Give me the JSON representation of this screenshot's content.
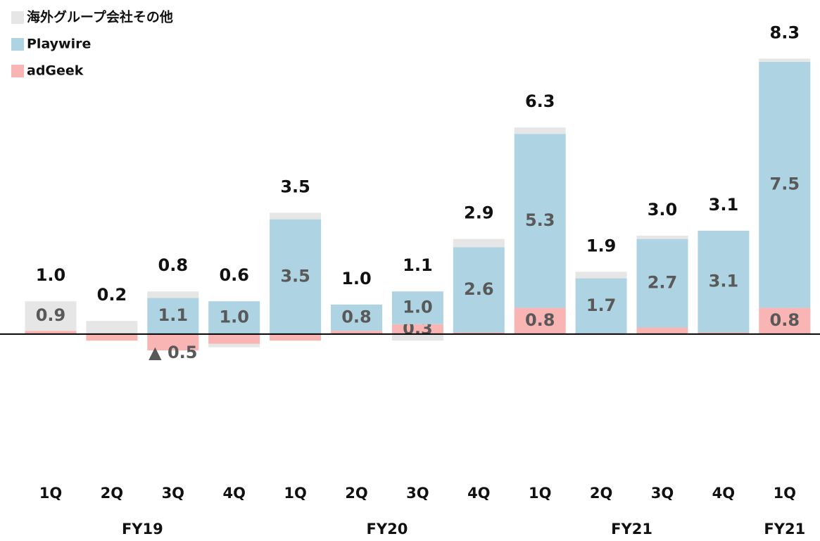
{
  "chart_data": {
    "type": "stacked_bar",
    "groups": [
      {
        "label": "FY19",
        "categories": [
          "1Q",
          "2Q",
          "3Q",
          "4Q"
        ]
      },
      {
        "label": "FY20",
        "categories": [
          "1Q",
          "2Q",
          "3Q",
          "4Q"
        ]
      },
      {
        "label": "FY21",
        "categories": [
          "1Q",
          "2Q",
          "3Q",
          "4Q"
        ]
      },
      {
        "label": "FY21",
        "categories": [
          "1Q"
        ]
      }
    ],
    "series": [
      {
        "name": "adGeek",
        "color": "#f9b4b4",
        "values": [
          0.1,
          -0.2,
          -0.5,
          -0.3,
          -0.2,
          0.1,
          0.3,
          0.05,
          0.8,
          0.0,
          0.2,
          0.05,
          0.8
        ],
        "value_labels": [
          null,
          null,
          "▲ 0.5",
          null,
          null,
          null,
          "0.3",
          null,
          "0.8",
          null,
          null,
          null,
          "0.8"
        ]
      },
      {
        "name": "Playwire",
        "color": "#aed4e3",
        "values": [
          0,
          0,
          1.1,
          1.0,
          3.5,
          0.8,
          1.0,
          2.6,
          5.3,
          1.7,
          2.7,
          3.1,
          7.5
        ],
        "value_labels": [
          null,
          null,
          "1.1",
          "1.0",
          "3.5",
          "0.8",
          "1.0",
          "2.6",
          "5.3",
          "1.7",
          "2.7",
          "3.1",
          "7.5"
        ]
      },
      {
        "name": "海外グループ会社その他",
        "color": "#e6e6e6",
        "values": [
          0.9,
          0.4,
          0.2,
          -0.1,
          0.2,
          0.0,
          -0.2,
          0.25,
          0.2,
          0.2,
          0.1,
          0.0,
          0.1
        ],
        "value_labels": [
          "0.9",
          null,
          null,
          null,
          null,
          null,
          null,
          null,
          null,
          null,
          null,
          null,
          null
        ]
      }
    ],
    "totals": [
      1.0,
      0.2,
      0.8,
      0.6,
      3.5,
      1.0,
      1.1,
      2.9,
      6.3,
      1.9,
      3.0,
      3.1,
      8.3
    ],
    "total_labels": [
      "1.0",
      "0.2",
      "0.8",
      "0.6",
      "3.5",
      "1.0",
      "1.1",
      "2.9",
      "6.3",
      "1.9",
      "3.0",
      "3.1",
      "8.3"
    ],
    "ylim": [
      -3.5,
      9.5
    ]
  }
}
